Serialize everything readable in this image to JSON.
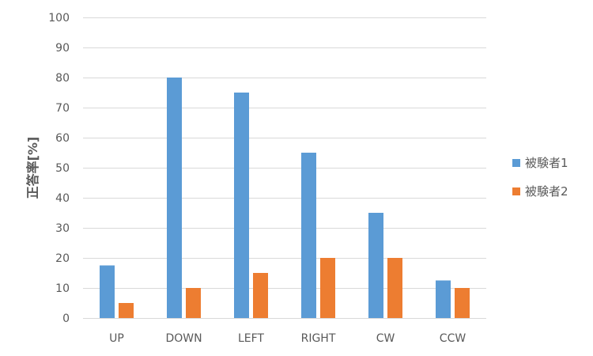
{
  "chart_data": {
    "type": "bar",
    "categories": [
      "UP",
      "DOWN",
      "LEFT",
      "RIGHT",
      "CW",
      "CCW"
    ],
    "series": [
      {
        "name": "被験者1",
        "values": [
          17.5,
          80,
          75,
          55,
          35,
          12.5
        ]
      },
      {
        "name": "被験者2",
        "values": [
          5,
          10,
          15,
          20,
          20,
          10
        ]
      }
    ],
    "ylabel": "正答率[%]",
    "xlabel": "",
    "ylim": [
      0,
      100
    ],
    "yticks": [
      0,
      10,
      20,
      30,
      40,
      50,
      60,
      70,
      80,
      90,
      100
    ],
    "grid": true,
    "legend_position": "right",
    "colors": [
      "#5B9BD5",
      "#ED7D31"
    ],
    "grid_color": "#D9D9D9",
    "text_color": "#595959"
  }
}
